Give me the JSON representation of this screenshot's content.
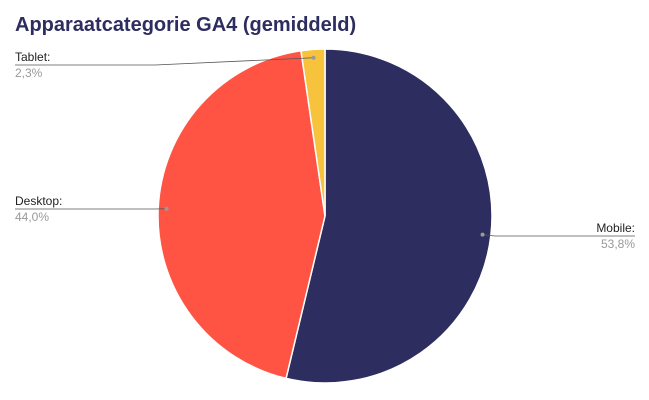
{
  "chart_data": {
    "type": "pie",
    "title": "Apparaatcategorie GA4 (gemiddeld)",
    "categories": [
      "Mobile:",
      "Desktop:",
      "Tablet:"
    ],
    "values": [
      53.8,
      44.0,
      2.3
    ],
    "value_labels": [
      "53,8%",
      "44,0%",
      "2,3%"
    ],
    "colors": [
      "#2d2d5f",
      "#ff5443",
      "#f7c23c"
    ]
  }
}
